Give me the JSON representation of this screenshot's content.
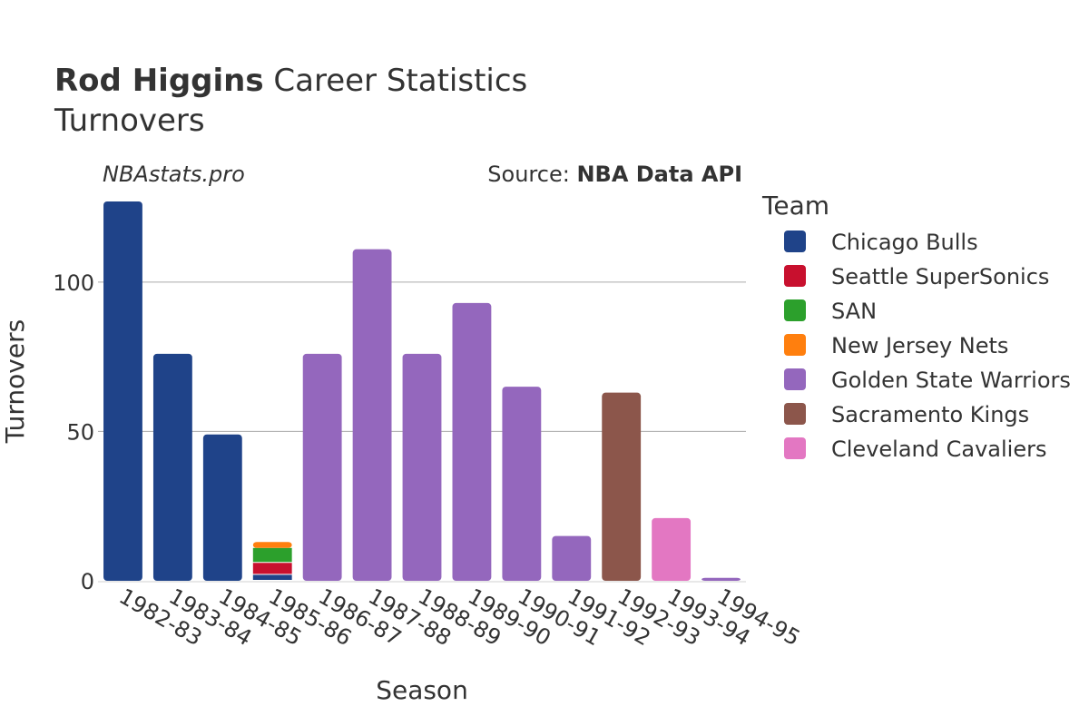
{
  "title": {
    "player": "Rod Higgins",
    "rest": " Career Statistics",
    "subtitle": "Turnovers"
  },
  "watermark": "NBAstats.pro",
  "source": {
    "prefix": "Source: ",
    "name": "NBA Data API"
  },
  "legend": {
    "title": "Team"
  },
  "chart_data": {
    "type": "bar",
    "stacked": true,
    "title": "Rod Higgins Career Statistics",
    "subtitle": "Turnovers",
    "xlabel": "Season",
    "ylabel": "Turnovers",
    "ylim": [
      0,
      127
    ],
    "yticks": [
      0,
      50,
      100
    ],
    "grid": true,
    "legend_position": "right",
    "categories": [
      "1982-83",
      "1983-84",
      "1984-85",
      "1985-86",
      "1986-87",
      "1987-88",
      "1988-89",
      "1989-90",
      "1990-91",
      "1991-92",
      "1992-93",
      "1993-94",
      "1994-95"
    ],
    "series": [
      {
        "name": "Chicago Bulls",
        "color": "#1f4389",
        "values": [
          127,
          76,
          49,
          2,
          0,
          0,
          0,
          0,
          0,
          0,
          0,
          0,
          0
        ]
      },
      {
        "name": "Seattle SuperSonics",
        "color": "#c8102e",
        "values": [
          0,
          0,
          0,
          4,
          0,
          0,
          0,
          0,
          0,
          0,
          0,
          0,
          0
        ]
      },
      {
        "name": "SAN",
        "color": "#2ca02c",
        "values": [
          0,
          0,
          0,
          5,
          0,
          0,
          0,
          0,
          0,
          0,
          0,
          0,
          0
        ]
      },
      {
        "name": "New Jersey Nets",
        "color": "#ff7f0e",
        "values": [
          0,
          0,
          0,
          2,
          0,
          0,
          0,
          0,
          0,
          0,
          0,
          0,
          0
        ]
      },
      {
        "name": "Golden State Warriors",
        "color": "#9467bd",
        "values": [
          0,
          0,
          0,
          0,
          76,
          111,
          76,
          93,
          65,
          15,
          0,
          0,
          1
        ]
      },
      {
        "name": "Sacramento Kings",
        "color": "#8c564b",
        "values": [
          0,
          0,
          0,
          0,
          0,
          0,
          0,
          0,
          0,
          0,
          63,
          0,
          0
        ]
      },
      {
        "name": "Cleveland Cavaliers",
        "color": "#e377c2",
        "values": [
          0,
          0,
          0,
          0,
          0,
          0,
          0,
          0,
          0,
          0,
          0,
          21,
          0
        ]
      }
    ]
  }
}
